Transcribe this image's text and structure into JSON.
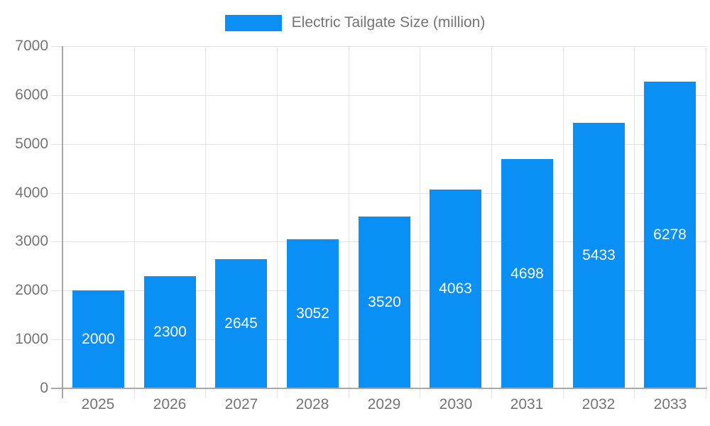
{
  "chart_data": {
    "type": "bar",
    "title": "Electric Tailgate Size (million)",
    "categories": [
      "2025",
      "2026",
      "2027",
      "2028",
      "2029",
      "2030",
      "2031",
      "2032",
      "2033"
    ],
    "values": [
      2000,
      2300,
      2645,
      3052,
      3520,
      4063,
      4698,
      5433,
      6278
    ],
    "xlabel": "",
    "ylabel": "",
    "ylim": [
      0,
      7000
    ],
    "ytick_step": 1000,
    "ytick_labels": [
      "0",
      "1000",
      "2000",
      "3000",
      "4000",
      "5000",
      "6000",
      "7000"
    ],
    "grid": true,
    "legend_position": "top",
    "bar_labels_shown": true,
    "colors": {
      "bar": "#0a8ff5",
      "bar_label": "#ffffff",
      "axis_text": "#757575",
      "gridline": "#e3e3e3",
      "axis_line": "#a8a8a8"
    }
  }
}
